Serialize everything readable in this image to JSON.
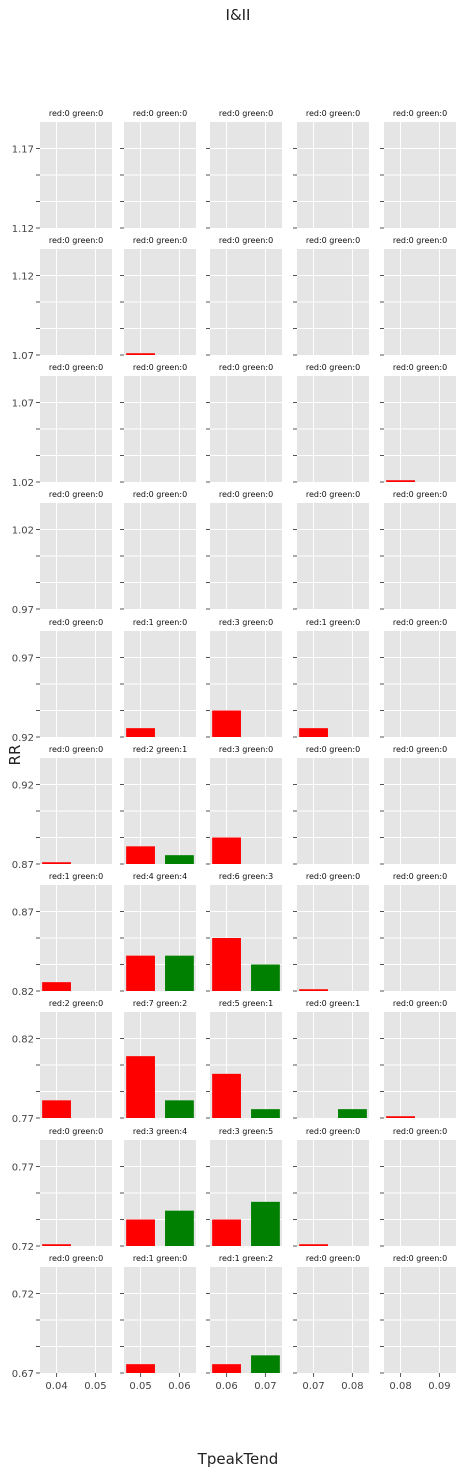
{
  "chart_data": {
    "type": "bar",
    "title": "I&II",
    "xlabel": "TpeakTend",
    "ylabel": "RR",
    "grid": true,
    "colors": {
      "red": "#ff0000",
      "green": "#008000",
      "panel_bg": "#e5e5e5",
      "grid": "#ffffff"
    },
    "value_scale": {
      "max_count": 12
    },
    "rows": [
      {
        "ticks": [
          "1.12",
          "1.17"
        ],
        "ylim": [
          1.12,
          1.19
        ]
      },
      {
        "ticks": [
          "1.07",
          "1.12"
        ],
        "ylim": [
          1.07,
          1.14
        ]
      },
      {
        "ticks": [
          "1.02",
          "1.07"
        ],
        "ylim": [
          1.02,
          1.09
        ]
      },
      {
        "ticks": [
          "0.97",
          "1.02"
        ],
        "ylim": [
          0.97,
          1.04
        ]
      },
      {
        "ticks": [
          "0.92",
          "0.97"
        ],
        "ylim": [
          0.92,
          0.99
        ]
      },
      {
        "ticks": [
          "0.87",
          "0.92"
        ],
        "ylim": [
          0.87,
          0.94
        ]
      },
      {
        "ticks": [
          "0.82",
          "0.87"
        ],
        "ylim": [
          0.82,
          0.89
        ]
      },
      {
        "ticks": [
          "0.77",
          "0.82"
        ],
        "ylim": [
          0.77,
          0.84
        ]
      },
      {
        "ticks": [
          "0.72",
          "0.77"
        ],
        "ylim": [
          0.72,
          0.79
        ]
      },
      {
        "ticks": [
          "0.67",
          "0.72"
        ],
        "ylim": [
          0.67,
          0.74
        ]
      }
    ],
    "columns": [
      {
        "ticks": [
          "0.04",
          "0.05"
        ]
      },
      {
        "ticks": [
          "0.05",
          "0.06"
        ]
      },
      {
        "ticks": [
          "0.06",
          "0.07"
        ]
      },
      {
        "ticks": [
          "0.07",
          "0.08"
        ]
      },
      {
        "ticks": [
          "0.08",
          "0.09"
        ]
      }
    ],
    "panels": [
      [
        {
          "title": "red:0 green:0",
          "red": 0,
          "green": 0
        },
        {
          "title": "red:0 green:0",
          "red": 0,
          "green": 0
        },
        {
          "title": "red:0 green:0",
          "red": 0,
          "green": 0
        },
        {
          "title": "red:0 green:0",
          "red": 0,
          "green": 0
        },
        {
          "title": "red:0 green:0",
          "red": 0,
          "green": 0
        }
      ],
      [
        {
          "title": "red:0 green:0",
          "red": 0,
          "green": 0
        },
        {
          "title": "red:0 green:0",
          "red": 0.2,
          "green": 0
        },
        {
          "title": "red:0 green:0",
          "red": 0,
          "green": 0
        },
        {
          "title": "red:0 green:0",
          "red": 0,
          "green": 0
        },
        {
          "title": "red:0 green:0",
          "red": 0,
          "green": 0
        }
      ],
      [
        {
          "title": "red:0 green:0",
          "red": 0,
          "green": 0
        },
        {
          "title": "red:0 green:0",
          "red": 0,
          "green": 0
        },
        {
          "title": "red:0 green:0",
          "red": 0,
          "green": 0
        },
        {
          "title": "red:0 green:0",
          "red": 0,
          "green": 0
        },
        {
          "title": "red:0 green:0",
          "red": 0.2,
          "green": 0
        }
      ],
      [
        {
          "title": "red:0 green:0",
          "red": 0,
          "green": 0
        },
        {
          "title": "red:0 green:0",
          "red": 0,
          "green": 0
        },
        {
          "title": "red:0 green:0",
          "red": 0,
          "green": 0
        },
        {
          "title": "red:0 green:0",
          "red": 0,
          "green": 0
        },
        {
          "title": "red:0 green:0",
          "red": 0,
          "green": 0
        }
      ],
      [
        {
          "title": "red:0 green:0",
          "red": 0,
          "green": 0
        },
        {
          "title": "red:1 green:0",
          "red": 1,
          "green": 0
        },
        {
          "title": "red:3 green:0",
          "red": 3,
          "green": 0
        },
        {
          "title": "red:1 green:0",
          "red": 1,
          "green": 0
        },
        {
          "title": "red:0 green:0",
          "red": 0,
          "green": 0
        }
      ],
      [
        {
          "title": "red:0 green:0",
          "red": 0.2,
          "green": 0
        },
        {
          "title": "red:2 green:1",
          "red": 2,
          "green": 1
        },
        {
          "title": "red:3 green:0",
          "red": 3,
          "green": 0
        },
        {
          "title": "red:0 green:0",
          "red": 0,
          "green": 0
        },
        {
          "title": "red:0 green:0",
          "red": 0,
          "green": 0
        }
      ],
      [
        {
          "title": "red:1 green:0",
          "red": 1,
          "green": 0
        },
        {
          "title": "red:4 green:4",
          "red": 4,
          "green": 4
        },
        {
          "title": "red:6 green:3",
          "red": 6,
          "green": 3
        },
        {
          "title": "red:0 green:0",
          "red": 0.2,
          "green": 0
        },
        {
          "title": "red:0 green:0",
          "red": 0,
          "green": 0
        }
      ],
      [
        {
          "title": "red:2 green:0",
          "red": 2,
          "green": 0
        },
        {
          "title": "red:7 green:2",
          "red": 7,
          "green": 2
        },
        {
          "title": "red:5 green:1",
          "red": 5,
          "green": 1
        },
        {
          "title": "red:0 green:1",
          "red": 0,
          "green": 1
        },
        {
          "title": "red:0 green:0",
          "red": 0.2,
          "green": 0
        }
      ],
      [
        {
          "title": "red:0 green:0",
          "red": 0.2,
          "green": 0
        },
        {
          "title": "red:3 green:4",
          "red": 3,
          "green": 4
        },
        {
          "title": "red:3 green:5",
          "red": 3,
          "green": 5
        },
        {
          "title": "red:0 green:0",
          "red": 0.2,
          "green": 0
        },
        {
          "title": "red:0 green:0",
          "red": 0,
          "green": 0
        }
      ],
      [
        {
          "title": "red:0 green:0",
          "red": 0,
          "green": 0
        },
        {
          "title": "red:1 green:0",
          "red": 1,
          "green": 0
        },
        {
          "title": "red:1 green:2",
          "red": 1,
          "green": 2
        },
        {
          "title": "red:0 green:0",
          "red": 0,
          "green": 0
        },
        {
          "title": "red:0 green:0",
          "red": 0,
          "green": 0
        }
      ]
    ]
  }
}
